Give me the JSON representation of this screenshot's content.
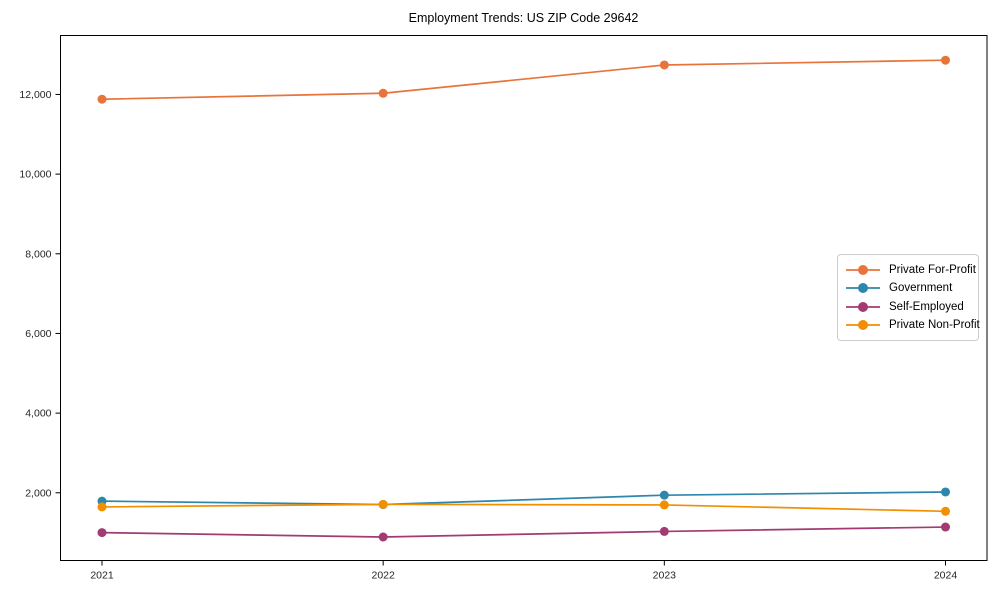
{
  "title": "Employment Trends: US ZIP Code 29642",
  "chart_data": {
    "type": "line",
    "title": "Employment Trends: US ZIP Code 29642",
    "xlabel": "",
    "ylabel": "",
    "categories": [
      "2021",
      "2022",
      "2023",
      "2024"
    ],
    "series": [
      {
        "name": "Private For-Profit",
        "color": "#e8743b",
        "values": [
          11880,
          12030,
          12740,
          12860
        ]
      },
      {
        "name": "Government",
        "color": "#2e86ab",
        "values": [
          1790,
          1705,
          1940,
          2020
        ]
      },
      {
        "name": "Self-Employed",
        "color": "#a23b72",
        "values": [
          1000,
          890,
          1030,
          1140
        ]
      },
      {
        "name": "Private Non-Profit",
        "color": "#f18f01",
        "values": [
          1645,
          1710,
          1695,
          1535
        ]
      }
    ],
    "ylim": [
      300,
      13480
    ],
    "yticks": [
      2000,
      4000,
      6000,
      8000,
      10000,
      12000
    ],
    "grid": false,
    "legend_position": "center-right",
    "axis_color": "#000000",
    "marker": "circle",
    "marker_radius": 4.5,
    "line_width": 1.7
  }
}
